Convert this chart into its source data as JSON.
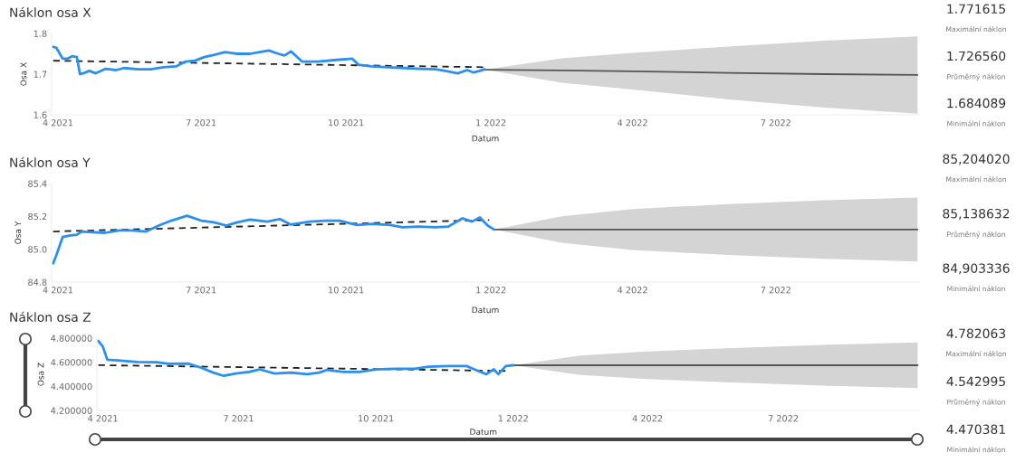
{
  "chart_data": [
    {
      "type": "line",
      "title": "Náklon osa X",
      "xlabel": "Datum",
      "ylabel": "Osa X",
      "ylim": [
        1.6,
        1.8
      ],
      "yticks": [
        1.6,
        1.7,
        1.8
      ],
      "xlim": [
        "2021-03-28",
        "2022-09-30"
      ],
      "xticks": [
        {
          "value": "2021-04-01",
          "label": "4 2021"
        },
        {
          "value": "2021-07-01",
          "label": "7 2021"
        },
        {
          "value": "2021-10-01",
          "label": "10 2021"
        },
        {
          "value": "2022-01-01",
          "label": "1 2022"
        },
        {
          "value": "2022-04-01",
          "label": "4 2022"
        },
        {
          "value": "2022-07-01",
          "label": "7 2022"
        }
      ],
      "grid": false,
      "legend": false,
      "series": [
        {
          "type": "line",
          "color": "#555555",
          "line_style": "solid",
          "x": [
            "2021-12-28",
            "2022-02-15",
            "2022-04-01",
            "2022-06-01",
            "2022-08-01",
            "2022-09-29"
          ],
          "values": [
            1.711,
            1.709,
            1.707,
            1.703,
            1.7,
            1.698
          ],
          "lower": [
            1.711,
            1.679,
            1.662,
            1.638,
            1.618,
            1.603
          ],
          "upper": [
            1.711,
            1.739,
            1.752,
            1.768,
            1.782,
            1.793
          ]
        },
        {
          "type": "line",
          "color": "#222222",
          "line_style": "dashed",
          "x": [
            "2021-03-29",
            "2021-12-28"
          ],
          "values": [
            1.733,
            1.717
          ]
        },
        {
          "type": "line",
          "color": "#2b8ff0",
          "line_style": "solid",
          "x": [
            "2021-03-29",
            "2021-03-31",
            "2021-04-04",
            "2021-04-07",
            "2021-04-10",
            "2021-04-13",
            "2021-04-15",
            "2021-04-17",
            "2021-04-21",
            "2021-04-25",
            "2021-05-01",
            "2021-05-08",
            "2021-05-13",
            "2021-05-22",
            "2021-05-30",
            "2021-06-07",
            "2021-06-15",
            "2021-06-21",
            "2021-06-27",
            "2021-07-03",
            "2021-07-10",
            "2021-07-16",
            "2021-07-24",
            "2021-08-01",
            "2021-08-07",
            "2021-08-13",
            "2021-08-19",
            "2021-08-23",
            "2021-08-27",
            "2021-09-03",
            "2021-09-13",
            "2021-09-25",
            "2021-10-05",
            "2021-10-09",
            "2021-10-17",
            "2021-10-27",
            "2021-11-07",
            "2021-11-17",
            "2021-11-27",
            "2021-12-03",
            "2021-12-11",
            "2021-12-17",
            "2021-12-21",
            "2021-12-25",
            "2021-12-28"
          ],
          "values": [
            1.767,
            1.765,
            1.738,
            1.738,
            1.744,
            1.742,
            1.7,
            1.702,
            1.708,
            1.702,
            1.713,
            1.71,
            1.715,
            1.712,
            1.712,
            1.717,
            1.719,
            1.731,
            1.733,
            1.742,
            1.748,
            1.754,
            1.75,
            1.75,
            1.754,
            1.758,
            1.75,
            1.746,
            1.756,
            1.731,
            1.731,
            1.735,
            1.738,
            1.723,
            1.719,
            1.717,
            1.715,
            1.713,
            1.712,
            1.708,
            1.702,
            1.71,
            1.704,
            1.708,
            1.712
          ]
        }
      ],
      "annotations": [
        "1.771615",
        "Maximální náklon",
        "1.726560",
        "Průměrný náklon",
        "1.684089",
        "Minimální náklon"
      ]
    },
    {
      "type": "line",
      "title": "Náklon osa Y",
      "xlabel": "Datum",
      "ylabel": "Osa Y",
      "ylim": [
        84.8,
        85.4
      ],
      "yticks": [
        84.8,
        {
          "value": 85.0,
          "label": "85.0"
        },
        85.2,
        85.4
      ],
      "xlim": [
        "2021-03-28",
        "2022-09-30"
      ],
      "xticks": [
        {
          "value": "2021-04-01",
          "label": "4 2021"
        },
        {
          "value": "2021-07-01",
          "label": "7 2021"
        },
        {
          "value": "2021-10-01",
          "label": "10 2021"
        },
        {
          "value": "2022-01-01",
          "label": "1 2022"
        },
        {
          "value": "2022-04-01",
          "label": "4 2022"
        },
        {
          "value": "2022-07-01",
          "label": "7 2022"
        }
      ],
      "grid": false,
      "legend": false,
      "series": [
        {
          "type": "line",
          "color": "#555555",
          "line_style": "solid",
          "x": [
            "2022-01-03",
            "2022-02-15",
            "2022-04-01",
            "2022-06-01",
            "2022-08-01",
            "2022-09-29"
          ],
          "values": [
            85.12,
            85.12,
            85.12,
            85.12,
            85.12,
            85.12
          ],
          "lower": [
            85.12,
            85.04,
            84.995,
            84.965,
            84.942,
            84.925
          ],
          "upper": [
            85.12,
            85.2,
            85.245,
            85.275,
            85.298,
            85.315
          ]
        },
        {
          "type": "line",
          "color": "#222222",
          "line_style": "dashed",
          "x": [
            "2021-03-29",
            "2021-12-31"
          ],
          "values": [
            85.108,
            85.178
          ]
        },
        {
          "type": "line",
          "color": "#2b8ff0",
          "line_style": "solid",
          "x": [
            "2021-03-29",
            "2021-03-31",
            "2021-04-04",
            "2021-04-09",
            "2021-04-13",
            "2021-04-16",
            "2021-04-23",
            "2021-05-01",
            "2021-05-10",
            "2021-05-18",
            "2021-05-27",
            "2021-06-04",
            "2021-06-12",
            "2021-06-22",
            "2021-07-01",
            "2021-07-09",
            "2021-07-17",
            "2021-07-24",
            "2021-08-01",
            "2021-08-12",
            "2021-08-20",
            "2021-08-27",
            "2021-09-08",
            "2021-09-18",
            "2021-09-27",
            "2021-10-08",
            "2021-10-18",
            "2021-10-29",
            "2021-11-06",
            "2021-11-16",
            "2021-11-27",
            "2021-12-05",
            "2021-12-14",
            "2021-12-20",
            "2021-12-25",
            "2021-12-30",
            "2022-01-03"
          ],
          "values": [
            84.914,
            84.964,
            85.074,
            85.084,
            85.088,
            85.108,
            85.104,
            85.1,
            85.114,
            85.114,
            85.108,
            85.144,
            85.174,
            85.204,
            85.174,
            85.164,
            85.144,
            85.164,
            85.18,
            85.168,
            85.184,
            85.15,
            85.168,
            85.174,
            85.174,
            85.148,
            85.154,
            85.148,
            85.134,
            85.138,
            85.134,
            85.138,
            85.188,
            85.168,
            85.194,
            85.144,
            85.12
          ]
        }
      ],
      "annotations": [
        "85,204020",
        "Maximální náklon",
        "85,138632",
        "Průměrný náklon",
        "84,903336",
        "Minimální náklon"
      ]
    },
    {
      "type": "line",
      "title": "Náklon osa Z",
      "xlabel": "Datum",
      "ylabel": "Osa Z",
      "ylim": [
        4.2,
        4.8
      ],
      "yticks": [
        {
          "value": 4.2,
          "label": "4.200000"
        },
        {
          "value": 4.4,
          "label": "4.400000"
        },
        {
          "value": 4.6,
          "label": "4.600000"
        },
        {
          "value": 4.8,
          "label": "4.800000"
        }
      ],
      "xlim": [
        "2021-03-28",
        "2022-09-30"
      ],
      "xticks": [
        {
          "value": "2021-04-01",
          "label": "4 2021"
        },
        {
          "value": "2021-07-01",
          "label": "7 2021"
        },
        {
          "value": "2021-10-01",
          "label": "10 2021"
        },
        {
          "value": "2022-01-01",
          "label": "1 2022"
        },
        {
          "value": "2022-04-01",
          "label": "4 2022"
        },
        {
          "value": "2022-07-01",
          "label": "7 2022"
        }
      ],
      "grid": false,
      "legend": false,
      "series": [
        {
          "type": "line",
          "color": "#555555",
          "line_style": "solid",
          "x": [
            "2022-01-01",
            "2022-02-15",
            "2022-04-01",
            "2022-06-01",
            "2022-08-01",
            "2022-09-29"
          ],
          "values": [
            4.575,
            4.575,
            4.575,
            4.575,
            4.575,
            4.575
          ],
          "lower": [
            4.575,
            4.495,
            4.46,
            4.43,
            4.405,
            4.385
          ],
          "upper": [
            4.575,
            4.655,
            4.69,
            4.72,
            4.745,
            4.765
          ]
        },
        {
          "type": "line",
          "color": "#222222",
          "line_style": "dashed",
          "x": [
            "2021-03-29",
            "2021-12-27"
          ],
          "values": [
            4.576,
            4.528
          ]
        },
        {
          "type": "line",
          "color": "#2b8ff0",
          "line_style": "solid",
          "x": [
            "2021-03-29",
            "2021-04-01",
            "2021-04-04",
            "2021-04-11",
            "2021-04-24",
            "2021-05-07",
            "2021-05-15",
            "2021-05-28",
            "2021-06-06",
            "2021-06-14",
            "2021-06-21",
            "2021-06-29",
            "2021-07-08",
            "2021-07-15",
            "2021-07-25",
            "2021-08-05",
            "2021-08-16",
            "2021-08-24",
            "2021-08-29",
            "2021-09-09",
            "2021-09-20",
            "2021-10-01",
            "2021-10-14",
            "2021-10-27",
            "2021-11-05",
            "2021-11-18",
            "2021-12-01",
            "2021-12-07",
            "2021-12-14",
            "2021-12-19",
            "2021-12-22",
            "2021-12-27",
            "2022-01-01"
          ],
          "values": [
            4.777,
            4.729,
            4.621,
            4.616,
            4.603,
            4.6,
            4.587,
            4.589,
            4.554,
            4.514,
            4.487,
            4.506,
            4.519,
            4.541,
            4.506,
            4.514,
            4.501,
            4.514,
            4.536,
            4.519,
            4.519,
            4.541,
            4.546,
            4.546,
            4.562,
            4.568,
            4.568,
            4.536,
            4.501,
            4.541,
            4.501,
            4.568,
            4.575
          ]
        }
      ],
      "annotations": [
        "4.782063",
        "Maximální náklon",
        "4.542995",
        "Průměrný náklon",
        "4.470381",
        "Minimální náklon"
      ]
    }
  ]
}
